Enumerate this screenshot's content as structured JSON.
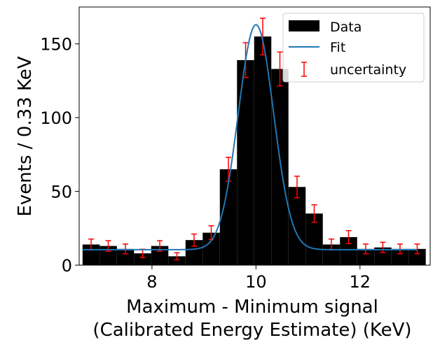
{
  "chart_data": {
    "type": "bar",
    "title": "",
    "xlabel_line1": "Maximum - Minimum signal",
    "xlabel_line2": "(Calibrated Energy Estimate) (KeV)",
    "ylabel": "Events / 0.33 KeV",
    "xlim": [
      6.6,
      13.35
    ],
    "ylim": [
      0,
      175
    ],
    "xticks": [
      8,
      10,
      12
    ],
    "yticks": [
      0,
      50,
      100,
      150
    ],
    "bin_width": 0.33,
    "bin_centers": [
      6.83,
      7.16,
      7.49,
      7.82,
      8.15,
      8.48,
      8.81,
      9.14,
      9.47,
      9.8,
      10.13,
      10.46,
      10.79,
      11.12,
      11.45,
      11.78,
      12.11,
      12.44,
      12.77,
      13.1
    ],
    "values": [
      14,
      13,
      11,
      8,
      13,
      6,
      17,
      22,
      65,
      139,
      155,
      133,
      53,
      35,
      14,
      19,
      11,
      12,
      11,
      11
    ],
    "uncertainty": [
      3.7,
      3.6,
      3.3,
      2.8,
      3.6,
      2.4,
      4.1,
      4.7,
      8.1,
      11.8,
      12.4,
      11.5,
      7.3,
      5.9,
      3.7,
      4.4,
      3.3,
      3.5,
      3.3,
      3.3
    ],
    "fit": {
      "baseline": 10.5,
      "amplitude": 152.5,
      "mean": 10.0,
      "sigma": 0.34,
      "x_range": [
        6.66,
        13.1
      ]
    },
    "legend": {
      "placement": "top-right",
      "entries": [
        "Data",
        "Fit",
        "uncertainty"
      ]
    },
    "colors": {
      "bars": "#000000",
      "fit": "#1f77b4",
      "errorbars": "#ff0000"
    },
    "grid": false
  }
}
